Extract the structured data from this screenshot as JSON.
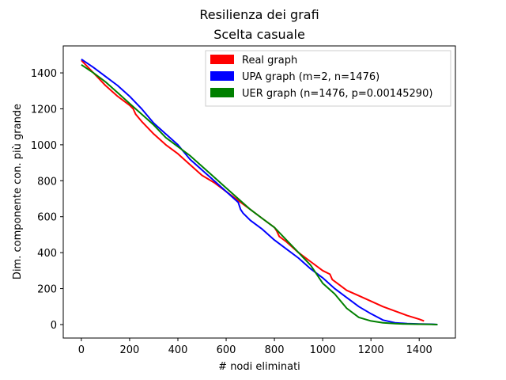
{
  "chart_data": {
    "type": "line",
    "title": "Resilienza dei grafi",
    "subtitle": "Scelta casuale",
    "xlabel": "# nodi eliminati",
    "ylabel": "Dim. componente con. più grande",
    "xlim": [
      -75,
      1550
    ],
    "ylim": [
      -75,
      1550
    ],
    "xticks": [
      0,
      200,
      400,
      600,
      800,
      1000,
      1200,
      1400
    ],
    "yticks": [
      0,
      200,
      400,
      600,
      800,
      1000,
      1200,
      1400
    ],
    "grid": false,
    "legend_position": "top-right",
    "series": [
      {
        "name": "Real graph",
        "color": "#ff0000",
        "x": [
          0,
          50,
          100,
          150,
          200,
          215,
          225,
          250,
          300,
          350,
          400,
          450,
          500,
          550,
          600,
          650,
          700,
          750,
          800,
          810,
          820,
          850,
          900,
          950,
          1000,
          1030,
          1040,
          1060,
          1100,
          1150,
          1200,
          1250,
          1300,
          1350,
          1400,
          1420
        ],
        "y": [
          1470,
          1400,
          1330,
          1270,
          1220,
          1200,
          1170,
          1130,
          1060,
          1000,
          950,
          890,
          830,
          790,
          740,
          690,
          640,
          590,
          540,
          520,
          490,
          460,
          400,
          350,
          300,
          280,
          250,
          230,
          190,
          160,
          130,
          100,
          75,
          50,
          30,
          20
        ]
      },
      {
        "name": "UPA graph (m=2, n=1476)",
        "color": "#0000ff",
        "x": [
          0,
          50,
          100,
          150,
          200,
          250,
          300,
          350,
          400,
          450,
          500,
          550,
          600,
          650,
          660,
          670,
          700,
          750,
          800,
          850,
          900,
          950,
          1000,
          1050,
          1100,
          1150,
          1200,
          1250,
          1300,
          1350,
          1400,
          1450,
          1476
        ],
        "y": [
          1476,
          1430,
          1380,
          1330,
          1270,
          1200,
          1120,
          1060,
          1000,
          920,
          860,
          800,
          740,
          680,
          640,
          620,
          580,
          530,
          470,
          420,
          370,
          310,
          260,
          200,
          150,
          100,
          60,
          25,
          10,
          5,
          3,
          2,
          0
        ]
      },
      {
        "name": "UER graph (n=1476, p=0.00145290)",
        "color": "#008000",
        "x": [
          0,
          50,
          100,
          150,
          200,
          250,
          300,
          350,
          400,
          450,
          500,
          550,
          600,
          650,
          700,
          750,
          800,
          850,
          900,
          950,
          1000,
          1050,
          1100,
          1150,
          1200,
          1250,
          1300,
          1350,
          1400,
          1450,
          1476
        ],
        "y": [
          1445,
          1400,
          1350,
          1290,
          1230,
          1170,
          1110,
          1040,
          990,
          940,
          880,
          820,
          760,
          700,
          640,
          590,
          540,
          470,
          400,
          330,
          230,
          170,
          90,
          40,
          20,
          10,
          5,
          3,
          2,
          1,
          0
        ]
      }
    ]
  }
}
